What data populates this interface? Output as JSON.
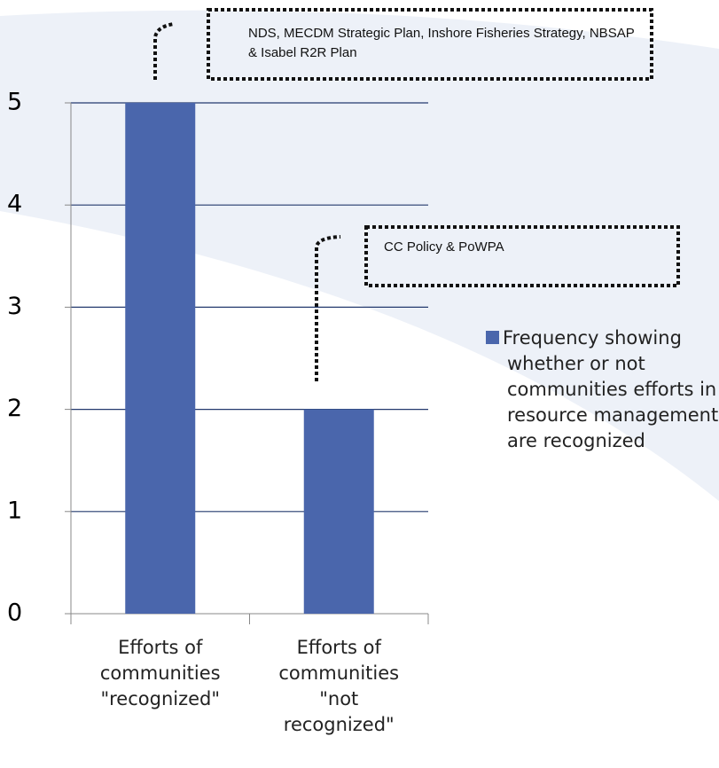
{
  "chart_data": {
    "type": "bar",
    "categories": [
      "Efforts of communities \"recognized\"",
      "Efforts of communities \"not recognized\""
    ],
    "series": [
      {
        "name": "Frequency showing whether or not communities efforts in resource management are recognized",
        "color": "#4a66ac",
        "values": [
          5,
          2
        ]
      }
    ],
    "ylim": [
      0,
      5
    ],
    "yticks": [
      0,
      1,
      2,
      3,
      4,
      5
    ],
    "grid": true,
    "legend": "right",
    "annotations": [
      "NDS, MECDM Strategic Plan, Inshore Fisheries Strategy, NBSAP & Isabel R2R Plan",
      "CC Policy & PoWPA"
    ]
  }
}
